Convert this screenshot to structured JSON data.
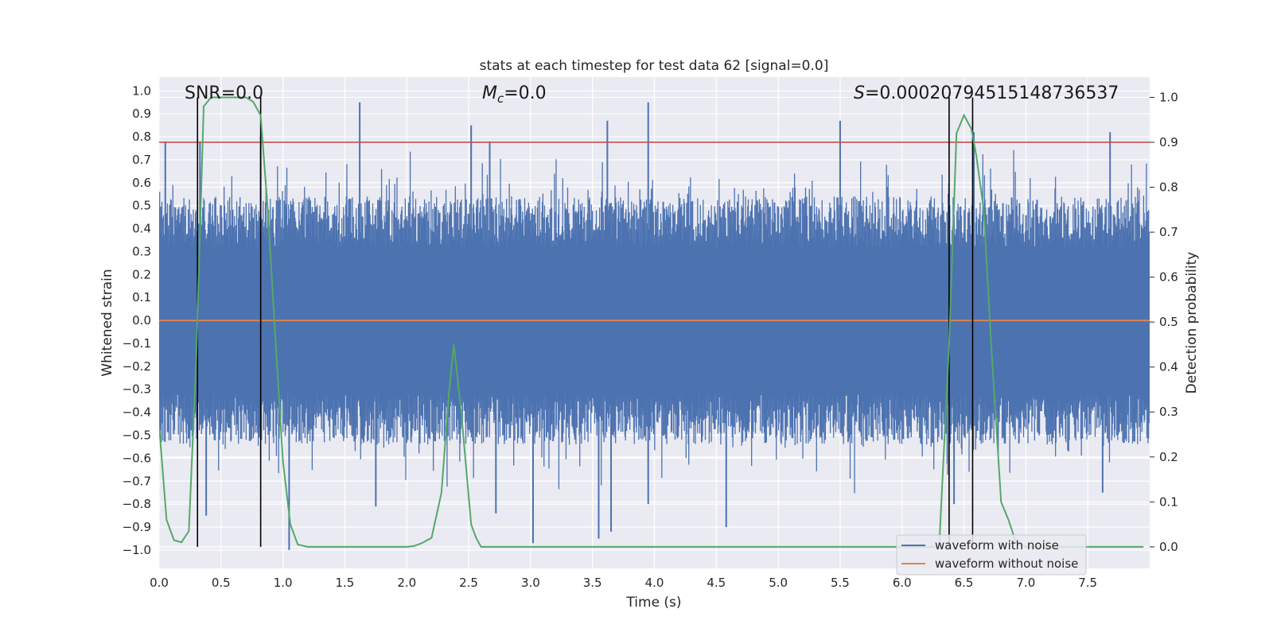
{
  "chart_data": {
    "type": "line",
    "title": "stats at each timestep for test data 62 [signal=0.0]",
    "xlabel": "Time (s)",
    "ylabel_left": "Whitened strain",
    "ylabel_right": "Detection probability",
    "xlim": [
      0.0,
      8.0
    ],
    "ylim_left": [
      -1.08,
      1.06
    ],
    "ylim_right": [
      -0.048,
      1.045
    ],
    "xticks": [
      "0.0",
      "0.5",
      "1.0",
      "1.5",
      "2.0",
      "2.5",
      "3.0",
      "3.5",
      "4.0",
      "4.5",
      "5.0",
      "5.5",
      "6.0",
      "6.5",
      "7.0",
      "7.5"
    ],
    "yticks_left": [
      "1.0",
      "0.9",
      "0.8",
      "0.7",
      "0.6",
      "0.5",
      "0.4",
      "0.3",
      "0.2",
      "0.1",
      "0.0",
      "−0.1",
      "−0.2",
      "−0.3",
      "−0.4",
      "−0.5",
      "−0.6",
      "−0.7",
      "−0.8",
      "−0.9",
      "−1.0"
    ],
    "yticks_right": [
      "1.0",
      "0.9",
      "0.8",
      "0.7",
      "0.6",
      "0.5",
      "0.4",
      "0.3",
      "0.2",
      "0.1",
      "0.0"
    ],
    "annotations": {
      "snr": "SNR=0.0",
      "mc_symbol": "M",
      "mc_sub": "c",
      "mc_value": "=0.0",
      "s_symbol": "S",
      "s_value": "=0.00020794515148736537"
    },
    "series": [
      {
        "name": "waveform with noise",
        "color": "#4c72b0",
        "axis": "left",
        "description_values": "noise band between approx -0.5 and 0.5 with spikes; peaks up to 0.95, dips to -1.0",
        "spike_peaks": [
          {
            "x": 0.05,
            "y": 0.78
          },
          {
            "x": 0.33,
            "y": 0.78
          },
          {
            "x": 0.82,
            "y": 0.8
          },
          {
            "x": 1.62,
            "y": 0.95
          },
          {
            "x": 2.52,
            "y": 0.85
          },
          {
            "x": 2.67,
            "y": 0.78
          },
          {
            "x": 3.62,
            "y": 0.87
          },
          {
            "x": 3.95,
            "y": 0.95
          },
          {
            "x": 5.5,
            "y": 0.87
          },
          {
            "x": 6.58,
            "y": 0.82
          },
          {
            "x": 7.68,
            "y": 0.82
          }
        ],
        "spike_dips": [
          {
            "x": 0.38,
            "y": -0.85
          },
          {
            "x": 1.05,
            "y": -1.0
          },
          {
            "x": 1.75,
            "y": -0.81
          },
          {
            "x": 2.72,
            "y": -0.84
          },
          {
            "x": 3.02,
            "y": -0.97
          },
          {
            "x": 3.55,
            "y": -0.95
          },
          {
            "x": 3.65,
            "y": -0.92
          },
          {
            "x": 3.95,
            "y": -0.8
          },
          {
            "x": 4.58,
            "y": -0.9
          },
          {
            "x": 6.42,
            "y": -0.8
          },
          {
            "x": 7.62,
            "y": -0.75
          }
        ]
      },
      {
        "name": "waveform without noise",
        "color": "#dd8452",
        "axis": "left",
        "x": [
          0.0,
          8.0
        ],
        "y": [
          0.0,
          0.0
        ]
      },
      {
        "name": "detection probability",
        "color": "#55a868",
        "axis": "right",
        "x": [
          0.0,
          0.06,
          0.12,
          0.18,
          0.24,
          0.3,
          0.36,
          0.42,
          0.5,
          0.6,
          0.7,
          0.76,
          0.82,
          0.88,
          0.94,
          1.0,
          1.06,
          1.12,
          1.2,
          1.5,
          1.8,
          2.0,
          2.06,
          2.12,
          2.2,
          2.28,
          2.34,
          2.38,
          2.44,
          2.52,
          2.56,
          2.6,
          3.0,
          3.5,
          4.0,
          5.0,
          6.0,
          6.3,
          6.38,
          6.44,
          6.5,
          6.56,
          6.6,
          6.66,
          6.72,
          6.8,
          6.86,
          6.92,
          7.0,
          7.5,
          7.95
        ],
        "y": [
          0.27,
          0.06,
          0.015,
          0.01,
          0.035,
          0.42,
          0.98,
          1.0,
          1.0,
          1.0,
          1.0,
          0.99,
          0.96,
          0.74,
          0.46,
          0.19,
          0.05,
          0.005,
          0.0,
          0.0,
          0.0,
          0.0,
          0.002,
          0.008,
          0.02,
          0.12,
          0.34,
          0.45,
          0.3,
          0.05,
          0.02,
          0.0,
          0.0,
          0.0,
          0.0,
          0.0,
          0.0,
          0.0,
          0.45,
          0.92,
          0.96,
          0.93,
          0.87,
          0.75,
          0.45,
          0.1,
          0.06,
          0.01,
          0.0,
          0.0,
          0.0
        ]
      }
    ],
    "threshold_line": {
      "axis": "right",
      "y": 0.9,
      "color": "#c44e52"
    },
    "vertical_markers": {
      "x": [
        0.31,
        0.82,
        6.38,
        6.57
      ],
      "color": "#000000"
    },
    "legend": {
      "location": "bottom-right",
      "entries": [
        {
          "label": "waveform with noise",
          "color": "#4c72b0"
        },
        {
          "label": "waveform without noise",
          "color": "#dd8452"
        }
      ]
    }
  }
}
